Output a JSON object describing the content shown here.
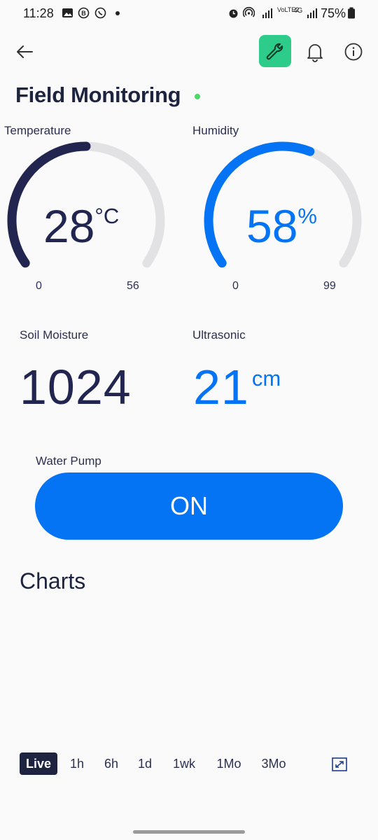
{
  "status_bar": {
    "time": "11:28",
    "battery_text": "75%",
    "network_label": "4G",
    "volte_label": "VoLTE2"
  },
  "header": {
    "title": "Field Monitoring",
    "status_color": "#4cd964",
    "wrench_color": "#2ecc8a"
  },
  "gauges": {
    "temperature": {
      "label": "Temperature",
      "value": "28",
      "unit": "°C",
      "min": "0",
      "max": "56",
      "fraction": 0.5,
      "color": "#212550"
    },
    "humidity": {
      "label": "Humidity",
      "value": "58",
      "unit": "%",
      "min": "0",
      "max": "99",
      "fraction": 0.586,
      "color": "#0474f5"
    }
  },
  "metrics": {
    "soil": {
      "label": "Soil Moisture",
      "value": "1024",
      "color": "#212550"
    },
    "ultrasonic": {
      "label": "Ultrasonic",
      "value": "21",
      "unit": "cm",
      "color": "#0474f5"
    }
  },
  "pump": {
    "label": "Water Pump",
    "state": "ON",
    "color": "#0474f5"
  },
  "charts": {
    "title": "Charts",
    "ranges": [
      "Live",
      "1h",
      "6h",
      "1d",
      "1wk",
      "1Mo",
      "3Mo"
    ],
    "active_range": "Live"
  },
  "icons": [
    "back-arrow-icon",
    "wrench-icon",
    "bell-icon",
    "info-icon",
    "expand-icon"
  ]
}
